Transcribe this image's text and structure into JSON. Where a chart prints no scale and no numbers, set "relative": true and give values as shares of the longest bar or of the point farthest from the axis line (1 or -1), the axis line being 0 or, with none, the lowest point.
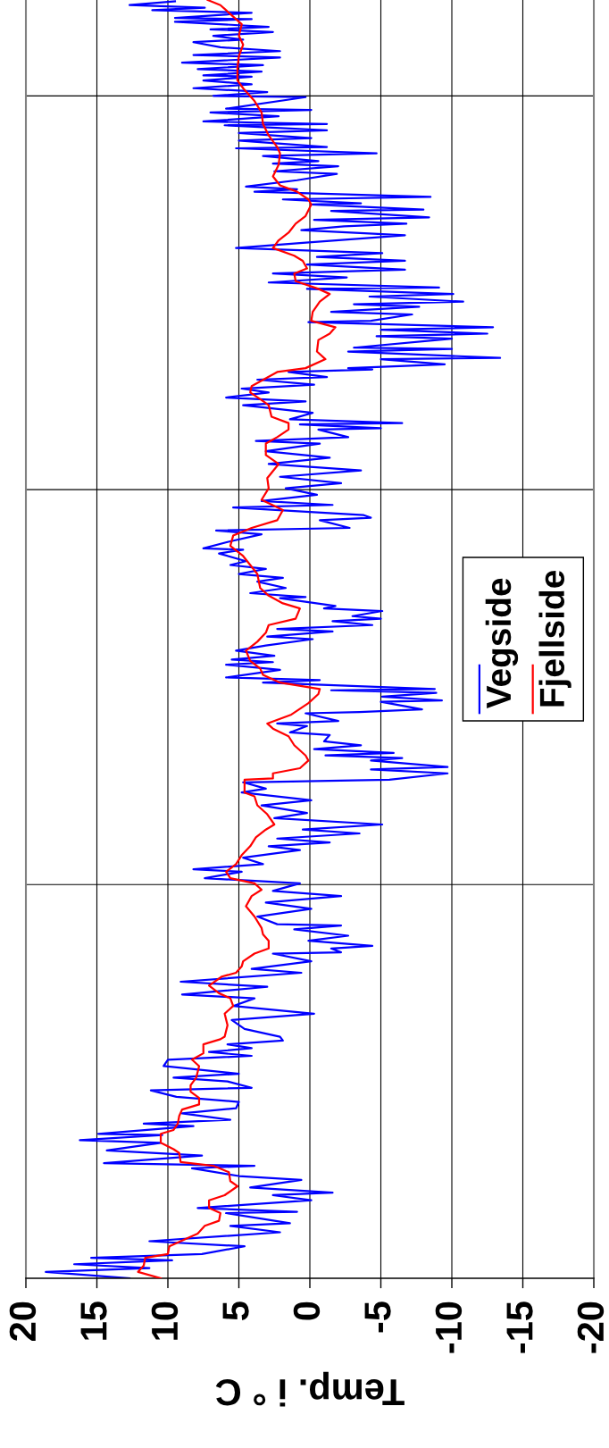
{
  "chart_data": {
    "type": "line",
    "xlabel": "Temp. i ° C",
    "xlim": [
      20,
      -20
    ],
    "xticks": [
      20,
      15,
      10,
      5,
      0,
      -5,
      -10,
      -15,
      -20
    ],
    "relative": true,
    "ref_lines": [
      {
        "axis": "y",
        "value": 0.308,
        "label": null,
        "color": "#000000"
      },
      {
        "axis": "y",
        "value": 0.617,
        "label": null,
        "color": "#000000"
      },
      {
        "axis": "y",
        "value": 0.925,
        "label": null,
        "color": "#000000"
      }
    ],
    "tick_labels": "x",
    "grid": "x",
    "legend": "right",
    "marker": "none",
    "line_style": "solid",
    "series": [
      {
        "name": "Vegside",
        "color": "#0000ff",
        "values": [
          0,
          0.005,
          0.008,
          0.011,
          0.014,
          0.016,
          0.019,
          0.025,
          0.029,
          0.036,
          0.041,
          0.043,
          0.051,
          0.052,
          0.055,
          0.061,
          0.065,
          0.067,
          0.071,
          0.077,
          0.08,
          0.086,
          0.088,
          0.09,
          0.096,
          0.1,
          0.106,
          0.108,
          0.112,
          0.113,
          0.119,
          0.121,
          0.124,
          0.129,
          0.133,
          0.138,
          0.142,
          0.147,
          0.149,
          0.154,
          0.157,
          0.16,
          0.166,
          0.171,
          0.174,
          0.177,
          0.18,
          0.183,
          0.186,
          0.189,
          0.195,
          0.202,
          0.207,
          0.213,
          0.219,
          0.222,
          0.228,
          0.232,
          0.239,
          0.242,
          0.248,
          0.254,
          0.255,
          0.258,
          0.26,
          0.264,
          0.268,
          0.273,
          0.276,
          0.277,
          0.283,
          0.289,
          0.294,
          0.299,
          0.303,
          0.309,
          0.313,
          0.318,
          0.32,
          0.324,
          0.329,
          0.335,
          0.338,
          0.341,
          0.344,
          0.348,
          0.351,
          0.355,
          0.36,
          0.364,
          0.37,
          0.374,
          0.38,
          0.383,
          0.388,
          0.39,
          0.395,
          0.398,
          0.4,
          0.405,
          0.407,
          0.409,
          0.411,
          0.414,
          0.417,
          0.42,
          0.425,
          0.427,
          0.432,
          0.434,
          0.436,
          0.442,
          0.443,
          0.445,
          0.451,
          0.452,
          0.455,
          0.458,
          0.46,
          0.461,
          0.466,
          0.468,
          0.47,
          0.476,
          0.48,
          0.482,
          0.484,
          0.487,
          0.491,
          0.495,
          0.5,
          0.502,
          0.506,
          0.508,
          0.511,
          0.514,
          0.516,
          0.518,
          0.522,
          0.524,
          0.526,
          0.532,
          0.533,
          0.536,
          0.54,
          0.545,
          0.548,
          0.551,
          0.555,
          0.558,
          0.561,
          0.567,
          0.57,
          0.571,
          0.576,
          0.582,
          0.585,
          0.587,
          0.593,
          0.595,
          0.597,
          0.603,
          0.605,
          0.608,
          0.613,
          0.618,
          0.622,
          0.627,
          0.632,
          0.637,
          0.642,
          0.647,
          0.653,
          0.655,
          0.658,
          0.664,
          0.665,
          0.668,
          0.669,
          0.672,
          0.677,
          0.683,
          0.686,
          0.689,
          0.693,
          0.696,
          0.699,
          0.703,
          0.705,
          0.709,
          0.711,
          0.712,
          0.715,
          0.719,
          0.72,
          0.725,
          0.727,
          0.728,
          0.735,
          0.737,
          0.739,
          0.742,
          0.744,
          0.748,
          0.749,
          0.754,
          0.756,
          0.76,
          0.762,
          0.764,
          0.768,
          0.77,
          0.774,
          0.775,
          0.779,
          0.783,
          0.786,
          0.789,
          0.793,
          0.796,
          0.799,
          0.802,
          0.806,
          0.81,
          0.816,
          0.82,
          0.823,
          0.825,
          0.828,
          0.83,
          0.835,
          0.836,
          0.84,
          0.841,
          0.844,
          0.846,
          0.85,
          0.852,
          0.854,
          0.859,
          0.864,
          0.866,
          0.87,
          0.872,
          0.874,
          0.878,
          0.88,
          0.884,
          0.885,
          0.89,
          0.892,
          0.896,
          0.898,
          0.902,
          0.903,
          0.905,
          0.909,
          0.912,
          0.914,
          0.915,
          0.924,
          0.925,
          0.928,
          0.931,
          0.934,
          0.937,
          0.94,
          0.941,
          0.944,
          0.946,
          0.949,
          0.951,
          0.955,
          0.957,
          0.96,
          0.963,
          0.967,
          0.969,
          0.972,
          0.975,
          0.977,
          0.979,
          0.983,
          0.985,
          0.986,
          0.99,
          0.992,
          0.994,
          0.996,
          0.999
        ],
        "x": [
          12.7,
          18.6,
          11.3,
          16.6,
          9.7,
          15.4,
          7.6,
          4.6,
          11.3,
          2.1,
          5.6,
          1.4,
          5.9,
          0.9,
          7.9,
          -0.1,
          2.6,
          -1.6,
          4.2,
          0.6,
          5.0,
          8.3,
          3.9,
          14.5,
          7.6,
          14.3,
          10.5,
          16.2,
          10.4,
          14.9,
          8.2,
          11.7,
          5.6,
          9.0,
          5.2,
          5.0,
          9.4,
          11.2,
          4.1,
          5.8,
          9.6,
          5.0,
          10.3,
          10.0,
          4.1,
          7.1,
          4.1,
          5.8,
          1.9,
          2.1,
          4.6,
          5.5,
          -0.3,
          5.4,
          3.9,
          9.0,
          3.0,
          9.1,
          0.6,
          4.1,
          -0.1,
          2.6,
          -2.2,
          -1.5,
          -4.4,
          0.1,
          -2.7,
          1.1,
          -2.2,
          2.3,
          3.7,
          -0.1,
          3.1,
          -2.2,
          2.6,
          0.7,
          7.4,
          4.8,
          8.2,
          3.3,
          4.7,
          0.7,
          2.9,
          -1.4,
          2.3,
          -3.5,
          0.5,
          -5.1,
          2.5,
          0.2,
          3.4,
          -0.1,
          4.8,
          3.1,
          4.7,
          -5.6,
          -9.7,
          -4.3,
          -9.7,
          -4.3,
          -6.5,
          -1.1,
          -5.9,
          -0.3,
          -3.6,
          -1.0,
          -1.4,
          1.4,
          0.2,
          2.3,
          -2.0,
          0.3,
          -3.5,
          -7.9,
          -5.0,
          -9.3,
          -5.1,
          -8.9,
          -1.5,
          -8.8,
          3.3,
          -0.7,
          5.9,
          2.1,
          5.9,
          2.6,
          5.5,
          2.5,
          5.2,
          3.1,
          -0.2,
          3.0,
          -1.6,
          2.3,
          -4.4,
          -1.6,
          -5.0,
          -3.0,
          -5.1,
          -1.0,
          -1.8,
          2.1,
          0.3,
          4.2,
          1.7,
          3.7,
          1.9,
          5.0,
          3.1,
          5.6,
          4.5,
          6.4,
          4.7,
          7.5,
          5.8,
          3.4,
          6.6,
          -2.8,
          -0.7,
          -4.3,
          -3.8,
          5.4,
          -1.6,
          3.4,
          -0.5,
          1.7,
          -2.2,
          2.1,
          -3.6,
          2.9,
          -1.4,
          3.1,
          -0.7,
          3.8,
          -2.7,
          -0.6,
          -5.0,
          0.7,
          -6.5,
          1.4,
          -0.2,
          4.7,
          0.3,
          5.9,
          2.9,
          4.8,
          -0.3,
          3.7,
          -1.2,
          1.5,
          -4.4,
          -2.7,
          -9.5,
          -5.0,
          -13.4,
          -2.7,
          -10.0,
          -3.1,
          -10.0,
          -4.7,
          -12.5,
          -5.0,
          -12.9,
          0.1,
          -4.3,
          -7.2,
          -1.5,
          -7.7,
          -3.1,
          -10.8,
          -4.2,
          -10.1,
          0.2,
          -9.1,
          2.9,
          -2.6,
          2.6,
          -6.7,
          0.2,
          -6.7,
          -0.5,
          -5.1,
          5.2,
          0.5,
          -6.7,
          0.6,
          -2.4,
          -6.8,
          -0.3,
          -8.4,
          -1.5,
          -8.0,
          -0.1,
          -3.6,
          1.9,
          -8.5,
          3.9,
          0.9,
          4.5,
          0.9,
          -1.9,
          2.5,
          -2.0,
          2.6,
          -0.6,
          3.3,
          -4.7,
          5.2,
          -1.2,
          5.0,
          -0.1,
          5.0,
          -1.2,
          6.0,
          -1.2,
          7.5,
          2.2,
          7.0,
          -0.1,
          5.9,
          0.3,
          6.8,
          3.0,
          8.2,
          4.1,
          7.5,
          4.1,
          7.5,
          3.4,
          7.9,
          3.3,
          9.0,
          2.1,
          8.2,
          2.1,
          6.3,
          8.2,
          4.7,
          6.8,
          2.6,
          7.0,
          2.9,
          9.5,
          4.1,
          9.5,
          4.1,
          11.1,
          7.4,
          12.7,
          9.5
        ]
      },
      {
        "name": "Fjellside",
        "color": "#ff0000",
        "values": [
          0,
          0.005,
          0.01,
          0.016,
          0.019,
          0.025,
          0.029,
          0.035,
          0.041,
          0.045,
          0.051,
          0.055,
          0.061,
          0.065,
          0.072,
          0.076,
          0.083,
          0.088,
          0.091,
          0.098,
          0.101,
          0.106,
          0.113,
          0.116,
          0.121,
          0.127,
          0.132,
          0.136,
          0.141,
          0.146,
          0.151,
          0.157,
          0.166,
          0.171,
          0.176,
          0.183,
          0.187,
          0.189,
          0.198,
          0.207,
          0.213,
          0.219,
          0.223,
          0.229,
          0.236,
          0.239,
          0.244,
          0.248,
          0.254,
          0.258,
          0.264,
          0.269,
          0.274,
          0.283,
          0.291,
          0.299,
          0.304,
          0.309,
          0.313,
          0.318,
          0.324,
          0.331,
          0.338,
          0.345,
          0.351,
          0.355,
          0.363,
          0.37,
          0.377,
          0.38,
          0.39,
          0.391,
          0.395,
          0.399,
          0.405,
          0.409,
          0.417,
          0.424,
          0.43,
          0.434,
          0.441,
          0.45,
          0.457,
          0.461,
          0.466,
          0.472,
          0.477,
          0.483,
          0.491,
          0.498,
          0.505,
          0.511,
          0.516,
          0.524,
          0.528,
          0.534,
          0.54,
          0.551,
          0.558,
          0.565,
          0.573,
          0.581,
          0.587,
          0.593,
          0.601,
          0.609,
          0.618,
          0.626,
          0.637,
          0.644,
          0.653,
          0.658,
          0.664,
          0.669,
          0.674,
          0.683,
          0.687,
          0.693,
          0.698,
          0.704,
          0.709,
          0.712,
          0.719,
          0.725,
          0.734,
          0.739,
          0.744,
          0.749,
          0.756,
          0.764,
          0.77,
          0.774,
          0.78,
          0.786,
          0.79,
          0.796,
          0.8,
          0.806,
          0.812,
          0.818,
          0.825,
          0.831,
          0.84,
          0.844,
          0.85,
          0.855,
          0.862,
          0.871,
          0.88,
          0.885,
          0.894,
          0.903,
          0.912,
          0.921,
          0.931,
          0.937,
          0.947,
          0.956,
          0.965,
          0.972,
          0.981,
          0.987,
          0.992,
          0.996,
          1.0
        ],
        "x": [
          10.5,
          12.1,
          11.7,
          11.6,
          10.0,
          9.9,
          9.1,
          7.9,
          7.4,
          6.4,
          6.3,
          7.1,
          7.1,
          6.0,
          5.1,
          5.6,
          5.7,
          6.8,
          9.1,
          9.2,
          9.6,
          10.5,
          10.5,
          9.6,
          9.3,
          9.2,
          9.0,
          7.8,
          7.8,
          8.4,
          8.4,
          8.0,
          7.8,
          8.3,
          7.5,
          7.5,
          6.3,
          6.0,
          5.8,
          6.0,
          5.4,
          5.6,
          6.4,
          7.1,
          6.2,
          5.2,
          4.8,
          4.7,
          3.9,
          2.9,
          2.9,
          3.3,
          3.4,
          3.9,
          4.5,
          4.1,
          3.4,
          3.9,
          5.6,
          5.9,
          5.2,
          4.8,
          4.2,
          3.8,
          3.1,
          2.5,
          3.0,
          3.7,
          3.9,
          4.6,
          4.6,
          2.6,
          2.6,
          0.7,
          0.1,
          0.3,
          1.1,
          1.5,
          2.6,
          3.0,
          1.3,
          0.1,
          -0.6,
          -0.7,
          2.1,
          3.3,
          3.5,
          4.2,
          4.5,
          3.7,
          3.1,
          2.9,
          1.0,
          0.7,
          1.9,
          2.9,
          3.5,
          3.7,
          4.2,
          4.7,
          5.6,
          5.4,
          4.1,
          2.3,
          1.9,
          3.4,
          2.9,
          3.0,
          2.2,
          3.1,
          3.1,
          2.3,
          1.5,
          1.5,
          2.7,
          2.9,
          3.4,
          4.2,
          4.1,
          3.1,
          2.3,
          0.3,
          -1.1,
          -0.5,
          -0.6,
          -1.4,
          -1.8,
          -0.1,
          -0.2,
          -0.7,
          -1.4,
          -0.6,
          1.0,
          1.1,
          0.2,
          0.5,
          1.1,
          2.6,
          2.2,
          1.5,
          1.0,
          0.3,
          -0.1,
          0.1,
          0.9,
          2.1,
          2.6,
          2.2,
          2.1,
          2.3,
          2.9,
          3.3,
          3.4,
          3.9,
          4.7,
          5.1,
          5.1,
          5.0,
          4.7,
          5.0,
          4.8,
          5.4,
          5.9,
          6.3,
          7.2
        ]
      }
    ]
  }
}
